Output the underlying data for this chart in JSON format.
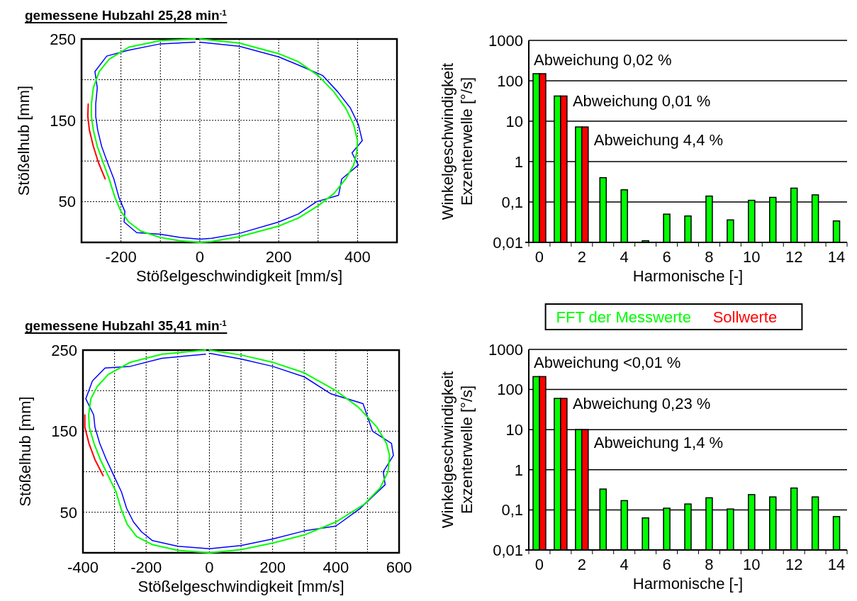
{
  "chart_data": [
    {
      "type": "line",
      "title": "gemessene Hubzahl 25,28 min$^{-1}$",
      "xlabel": "Stößelgeschwindigkeit [mm/s]",
      "ylabel": "Stößelhub [mm]",
      "xlim": [
        -300,
        500
      ],
      "xticks": [
        {
          "value": -300,
          "label": null
        },
        -200,
        {
          "value": -100,
          "label": null
        },
        0,
        {
          "value": 100,
          "label": null
        },
        200,
        {
          "value": 300,
          "label": null
        },
        400,
        {
          "value": 500,
          "label": null
        }
      ],
      "ylim": [
        0,
        250
      ],
      "yticks": [
        {
          "value": 0,
          "label": null
        },
        50,
        {
          "value": 100,
          "label": null
        },
        150,
        {
          "value": 200,
          "label": null
        },
        250
      ],
      "grid": true,
      "series": [
        {
          "color": "#0000ff",
          "x": [
            0,
            100,
            200,
            250,
            312,
            350,
            382,
            402,
            412,
            386,
            402,
            360,
            352,
            296,
            250,
            200,
            100,
            30,
            0,
            -50,
            -100,
            -160,
            -192,
            -190,
            -205,
            -218,
            -234,
            -249,
            -259,
            -264,
            -264,
            -260,
            -266,
            -236,
            -182,
            -100,
            -12
          ],
          "values": [
            246,
            241,
            228,
            218,
            205,
            185,
            165,
            145,
            125,
            110,
            95,
            78,
            58,
            50,
            35,
            25,
            11,
            5,
            4,
            6,
            10,
            12,
            25,
            38,
            55,
            78,
            98,
            118,
            138,
            155,
            170,
            190,
            210,
            229,
            236,
            244,
            246
          ]
        },
        {
          "color": "#ff0000",
          "x": [
            -240,
            -257,
            -270,
            -280,
            -284,
            -283
          ],
          "values": [
            78,
            98,
            118,
            138,
            155,
            170
          ]
        },
        {
          "color": "#00ff00",
          "x": [
            0,
            100,
            200,
            250,
            300,
            340,
            370,
            390,
            400,
            398,
            390,
            370,
            340,
            300,
            250,
            200,
            100,
            30,
            0,
            -50,
            -100,
            -150,
            -180,
            -200,
            -215,
            -230,
            -245,
            -260,
            -270,
            -275,
            -275,
            -270,
            -255,
            -230,
            -180,
            -100,
            -12
          ],
          "values": [
            250,
            245,
            232,
            222,
            205,
            185,
            165,
            145,
            125,
            110,
            95,
            78,
            60,
            45,
            30,
            20,
            7,
            1,
            0,
            2,
            6,
            14,
            25,
            38,
            55,
            78,
            98,
            118,
            138,
            155,
            170,
            190,
            210,
            225,
            240,
            248,
            250
          ]
        }
      ]
    },
    {
      "type": "bar",
      "xlabel": "Harmonische [-]",
      "ylabel": "Winkelgeschwindigkeit Exzenterwelle [°/s]",
      "log": true,
      "ylim": [
        0.01,
        1000
      ],
      "yticks": [
        {
          "value": 0.01,
          "label": "0,01"
        },
        {
          "value": 0.1,
          "label": "0,1"
        },
        1,
        10,
        100,
        1000
      ],
      "grid": "y",
      "legend": "bottom",
      "categories": [
        "0",
        null,
        "2",
        null,
        "4",
        null,
        "6",
        null,
        "8",
        null,
        "10",
        null,
        "12",
        null,
        "14"
      ],
      "annotations": [
        "Abweichung 0,02 %",
        "Abweichung 0,01 %",
        "Abweichung 4,4 %"
      ],
      "series": [
        {
          "name": "FFT der Messwerte",
          "color": "#00ff00",
          "values": [
            150,
            42,
            7.2,
            0.4,
            0.2,
            0.011,
            0.05,
            0.045,
            0.14,
            0.036,
            0.11,
            0.13,
            0.22,
            0.15,
            0.034
          ]
        },
        {
          "name": "Sollwerte",
          "color": "#ff0000",
          "values": [
            150,
            42,
            7.2,
            null,
            null,
            null,
            null,
            null,
            null,
            null,
            null,
            null,
            null,
            null,
            null
          ]
        }
      ]
    },
    {
      "type": "line",
      "title": "gemessene Hubzahl 35,41 min$^{-1}$",
      "xlabel": "Stößelgeschwindigkeit [mm/s]",
      "ylabel": "Stößelhub [mm]",
      "xlim": [
        -400,
        600
      ],
      "xticks": [
        -400,
        {
          "value": -300,
          "label": null
        },
        -200,
        {
          "value": -100,
          "label": null
        },
        0,
        {
          "value": 100,
          "label": null
        },
        200,
        {
          "value": 300,
          "label": null
        },
        400,
        {
          "value": 500,
          "label": null
        },
        600
      ],
      "ylim": [
        0,
        250
      ],
      "yticks": [
        {
          "value": 0,
          "label": null
        },
        50,
        {
          "value": 100,
          "label": null
        },
        150,
        {
          "value": 200,
          "label": null
        },
        250
      ],
      "grid": true,
      "series": [
        {
          "color": "#0000ff",
          "x": [
            0,
            100,
            200,
            300,
            385,
            486,
            516,
            576,
            582,
            550,
            556,
            478,
            400,
            300,
            200,
            100,
            0,
            -100,
            -180,
            -215,
            -240,
            -262,
            -278,
            -302,
            -326,
            -347,
            -362,
            -366,
            -391,
            -370,
            -330,
            -250,
            -150,
            -12
          ],
          "values": [
            246,
            239,
            230,
            217,
            196,
            184,
            150,
            135,
            120,
            100,
            84,
            55,
            33,
            27,
            17,
            9,
            5,
            8,
            15,
            26,
            38,
            55,
            75,
            95,
            115,
            135,
            155,
            170,
            190,
            212,
            228,
            230,
            240,
            245
          ]
        },
        {
          "color": "#ff0000",
          "x": [
            -336,
            -362,
            -381,
            -394,
            -394
          ],
          "values": [
            95,
            115,
            135,
            155,
            170
          ]
        },
        {
          "color": "#00ff00",
          "x": [
            0,
            100,
            200,
            300,
            400,
            470,
            530,
            560,
            570,
            565,
            540,
            490,
            400,
            300,
            200,
            100,
            0,
            -100,
            -180,
            -230,
            -260,
            -280,
            -295,
            -320,
            -345,
            -365,
            -380,
            -382,
            -375,
            -355,
            -320,
            -250,
            -150,
            -12
          ],
          "values": [
            250,
            244,
            235,
            222,
            200,
            180,
            155,
            135,
            120,
            100,
            80,
            60,
            38,
            22,
            12,
            4,
            0,
            3,
            10,
            20,
            35,
            55,
            75,
            95,
            115,
            135,
            155,
            170,
            190,
            205,
            220,
            235,
            245,
            250
          ]
        }
      ]
    },
    {
      "type": "bar",
      "xlabel": "Harmonische [-]",
      "ylabel": "Winkelgeschwindigkeit Exzenterwelle [°/s]",
      "log": true,
      "ylim": [
        0.01,
        1000
      ],
      "yticks": [
        {
          "value": 0.01,
          "label": "0,01"
        },
        {
          "value": 0.1,
          "label": "0,1"
        },
        1,
        10,
        100,
        1000
      ],
      "grid": "y",
      "categories": [
        "0",
        null,
        "2",
        null,
        "4",
        null,
        "6",
        null,
        "8",
        null,
        "10",
        null,
        "12",
        null,
        "14"
      ],
      "annotations": [
        "Abweichung <0,01 %",
        "Abweichung 0,23 %",
        "Abweichung 1,4 %"
      ],
      "series": [
        {
          "color": "#00ff00",
          "values": [
            210,
            60,
            10,
            0.33,
            0.17,
            0.063,
            0.11,
            0.14,
            0.2,
            0.105,
            0.24,
            0.21,
            0.35,
            0.21,
            0.068
          ]
        },
        {
          "color": "#ff0000",
          "values": [
            210,
            60,
            10,
            null,
            null,
            null,
            null,
            null,
            null,
            null,
            null,
            null,
            null,
            null,
            null
          ]
        }
      ]
    }
  ]
}
